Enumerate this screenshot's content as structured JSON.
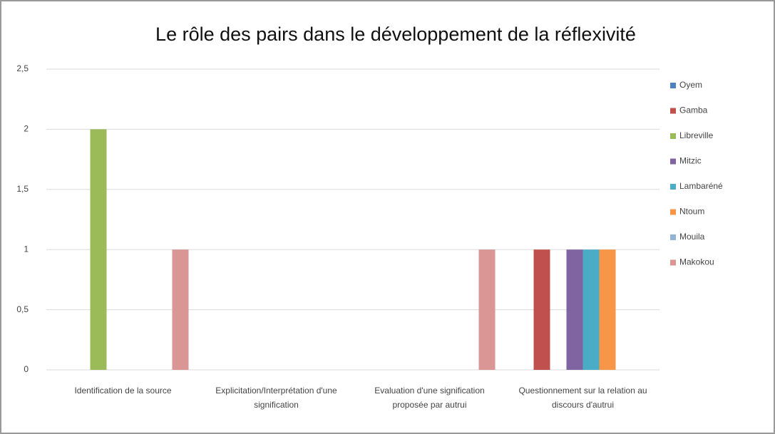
{
  "chart_data": {
    "type": "bar",
    "title": "Le rôle des pairs dans le développement de la réflexivité",
    "categories": [
      "Identification de la source",
      "Explicitation/Interprétation d'une signification",
      "Evaluation d'une signification proposée par autrui",
      "Questionnement sur la relation au discours d'autrui"
    ],
    "series": [
      {
        "name": "Oyem",
        "color": "#4f81bd",
        "values": [
          0,
          0,
          0,
          0
        ]
      },
      {
        "name": "Gamba",
        "color": "#c0504d",
        "values": [
          0,
          0,
          0,
          1
        ]
      },
      {
        "name": "Libreville",
        "color": "#9bbb59",
        "values": [
          2,
          0,
          0,
          0
        ]
      },
      {
        "name": "Mitzic",
        "color": "#8064a2",
        "values": [
          0,
          0,
          0,
          1
        ]
      },
      {
        "name": "Lambaréné",
        "color": "#4bacc6",
        "values": [
          0,
          0,
          0,
          1
        ]
      },
      {
        "name": "Ntoum",
        "color": "#f79646",
        "values": [
          0,
          0,
          0,
          1
        ]
      },
      {
        "name": "Mouila",
        "color": "#95b3d7",
        "values": [
          0,
          0,
          0,
          0
        ]
      },
      {
        "name": "Makokou",
        "color": "#d99694",
        "values": [
          1,
          0,
          1,
          0
        ]
      }
    ],
    "ylim": [
      0,
      2.5
    ],
    "yticks": [
      0,
      {
        "value": 0.5,
        "label": "0,5"
      },
      1,
      {
        "value": 1.5,
        "label": "1,5"
      },
      2,
      {
        "value": 2.5,
        "label": "2,5"
      }
    ],
    "grid": true,
    "legend": "right"
  }
}
